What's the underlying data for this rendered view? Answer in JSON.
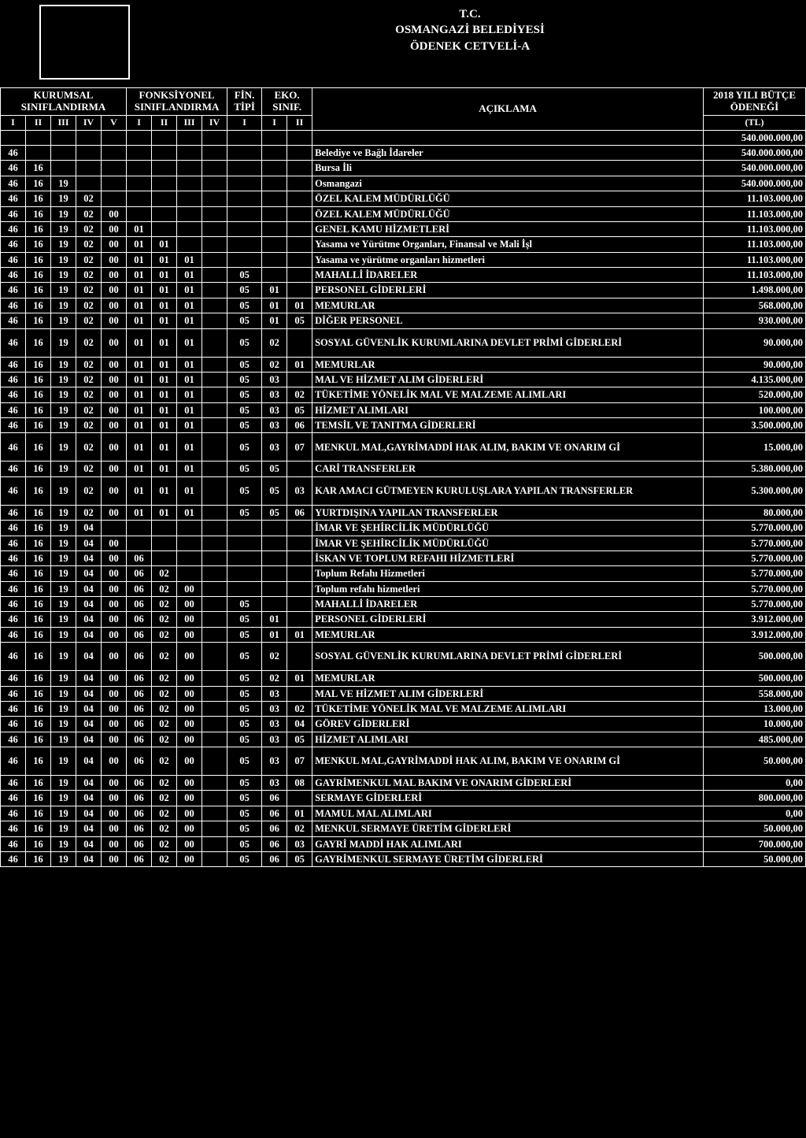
{
  "title": {
    "line1": "T.C.",
    "line2": "OSMANGAZİ BELEDİYESİ",
    "line3": "ÖDENEK CETVELİ-A"
  },
  "headers": {
    "kurumsal": "KURUMSAL SINIFLANDIRMA",
    "fonksiyonel": "FONKSİYONEL SINIFLANDIRMA",
    "fin": "FİN. TİPİ",
    "eko": "EKO. SINIF.",
    "aciklama": "AÇIKLAMA",
    "butce": "2018 YILI BÜTÇE ÖDENEĞİ",
    "tl": "(TL)",
    "roman": {
      "I": "I",
      "II": "II",
      "III": "III",
      "IV": "IV",
      "V": "V"
    }
  },
  "rows": [
    {
      "codes": [
        "",
        "",
        "",
        "",
        "",
        "",
        "",
        "",
        "",
        "",
        "",
        ""
      ],
      "desc": "",
      "amt": "540.000.000,00"
    },
    {
      "codes": [
        "46",
        "",
        "",
        "",
        "",
        "",
        "",
        "",
        "",
        "",
        "",
        ""
      ],
      "desc": "Belediye ve Bağlı İdareler",
      "amt": "540.000.000,00"
    },
    {
      "codes": [
        "46",
        "16",
        "",
        "",
        "",
        "",
        "",
        "",
        "",
        "",
        "",
        ""
      ],
      "desc": "Bursa İli",
      "amt": "540.000.000,00"
    },
    {
      "codes": [
        "46",
        "16",
        "19",
        "",
        "",
        "",
        "",
        "",
        "",
        "",
        "",
        ""
      ],
      "desc": "Osmangazi",
      "amt": "540.000.000,00"
    },
    {
      "codes": [
        "46",
        "16",
        "19",
        "02",
        "",
        "",
        "",
        "",
        "",
        "",
        "",
        ""
      ],
      "desc": "ÖZEL KALEM MÜDÜRLÜĞÜ",
      "amt": "11.103.000,00"
    },
    {
      "codes": [
        "46",
        "16",
        "19",
        "02",
        "00",
        "",
        "",
        "",
        "",
        "",
        "",
        ""
      ],
      "desc": "ÖZEL KALEM MÜDÜRLÜĞÜ",
      "amt": "11.103.000,00"
    },
    {
      "codes": [
        "46",
        "16",
        "19",
        "02",
        "00",
        "01",
        "",
        "",
        "",
        "",
        "",
        ""
      ],
      "desc": "GENEL KAMU HİZMETLERİ",
      "amt": "11.103.000,00"
    },
    {
      "codes": [
        "46",
        "16",
        "19",
        "02",
        "00",
        "01",
        "01",
        "",
        "",
        "",
        "",
        ""
      ],
      "desc": "Yasama ve Yürütme Organları,  Finansal ve Mali İşl",
      "amt": "11.103.000,00"
    },
    {
      "codes": [
        "46",
        "16",
        "19",
        "02",
        "00",
        "01",
        "01",
        "01",
        "",
        "",
        "",
        ""
      ],
      "desc": "Yasama ve yürütme organları hizmetleri",
      "amt": "11.103.000,00"
    },
    {
      "codes": [
        "46",
        "16",
        "19",
        "02",
        "00",
        "01",
        "01",
        "01",
        "",
        "05",
        "",
        ""
      ],
      "desc": "MAHALLİ İDARELER",
      "amt": "11.103.000,00"
    },
    {
      "codes": [
        "46",
        "16",
        "19",
        "02",
        "00",
        "01",
        "01",
        "01",
        "",
        "05",
        "01",
        ""
      ],
      "desc": "PERSONEL GİDERLERİ",
      "amt": "1.498.000,00"
    },
    {
      "codes": [
        "46",
        "16",
        "19",
        "02",
        "00",
        "01",
        "01",
        "01",
        "",
        "05",
        "01",
        "01"
      ],
      "desc": "MEMURLAR",
      "amt": "568.000,00"
    },
    {
      "codes": [
        "46",
        "16",
        "19",
        "02",
        "00",
        "01",
        "01",
        "01",
        "",
        "05",
        "01",
        "05"
      ],
      "desc": "DİĞER PERSONEL",
      "amt": "930.000,00"
    },
    {
      "codes": [
        "46",
        "16",
        "19",
        "02",
        "00",
        "01",
        "01",
        "01",
        "",
        "05",
        "02",
        ""
      ],
      "desc": "SOSYAL GÜVENLİK KURUMLARINA DEVLET PRİMİ GİDERLERİ",
      "amt": "90.000,00",
      "tall": true
    },
    {
      "codes": [
        "46",
        "16",
        "19",
        "02",
        "00",
        "01",
        "01",
        "01",
        "",
        "05",
        "02",
        "01"
      ],
      "desc": "MEMURLAR",
      "amt": "90.000,00"
    },
    {
      "codes": [
        "46",
        "16",
        "19",
        "02",
        "00",
        "01",
        "01",
        "01",
        "",
        "05",
        "03",
        ""
      ],
      "desc": "MAL VE HİZMET ALIM GİDERLERİ",
      "amt": "4.135.000,00"
    },
    {
      "codes": [
        "46",
        "16",
        "19",
        "02",
        "00",
        "01",
        "01",
        "01",
        "",
        "05",
        "03",
        "02"
      ],
      "desc": "TÜKETİME YÖNELİK MAL VE MALZEME ALIMLARI",
      "amt": "520.000,00"
    },
    {
      "codes": [
        "46",
        "16",
        "19",
        "02",
        "00",
        "01",
        "01",
        "01",
        "",
        "05",
        "03",
        "05"
      ],
      "desc": "HİZMET ALIMLARI",
      "amt": "100.000,00"
    },
    {
      "codes": [
        "46",
        "16",
        "19",
        "02",
        "00",
        "01",
        "01",
        "01",
        "",
        "05",
        "03",
        "06"
      ],
      "desc": "TEMSİL VE TANITMA GİDERLERİ",
      "amt": "3.500.000,00"
    },
    {
      "codes": [
        "46",
        "16",
        "19",
        "02",
        "00",
        "01",
        "01",
        "01",
        "",
        "05",
        "03",
        "07"
      ],
      "desc": "MENKUL MAL,GAYRİMADDİ HAK ALIM, BAKIM VE ONARIM Gİ",
      "amt": "15.000,00",
      "tall": true
    },
    {
      "codes": [
        "46",
        "16",
        "19",
        "02",
        "00",
        "01",
        "01",
        "01",
        "",
        "05",
        "05",
        ""
      ],
      "desc": "CARİ TRANSFERLER",
      "amt": "5.380.000,00"
    },
    {
      "codes": [
        "46",
        "16",
        "19",
        "02",
        "00",
        "01",
        "01",
        "01",
        "",
        "05",
        "05",
        "03"
      ],
      "desc": "KAR AMACI GÜTMEYEN KURULUŞLARA YAPILAN TRANSFERLER",
      "amt": "5.300.000,00",
      "tall": true
    },
    {
      "codes": [
        "46",
        "16",
        "19",
        "02",
        "00",
        "01",
        "01",
        "01",
        "",
        "05",
        "05",
        "06"
      ],
      "desc": "YURTDIŞINA YAPILAN TRANSFERLER",
      "amt": "80.000,00"
    },
    {
      "codes": [
        "46",
        "16",
        "19",
        "04",
        "",
        "",
        "",
        "",
        "",
        "",
        "",
        ""
      ],
      "desc": "İMAR VE ŞEHİRCİLİK MÜDÜRLÜĞÜ",
      "amt": "5.770.000,00"
    },
    {
      "codes": [
        "46",
        "16",
        "19",
        "04",
        "00",
        "",
        "",
        "",
        "",
        "",
        "",
        ""
      ],
      "desc": "İMAR VE ŞEHİRCİLİK MÜDÜRLÜĞÜ",
      "amt": "5.770.000,00"
    },
    {
      "codes": [
        "46",
        "16",
        "19",
        "04",
        "00",
        "06",
        "",
        "",
        "",
        "",
        "",
        ""
      ],
      "desc": "İSKAN VE TOPLUM REFAHI HİZMETLERİ",
      "amt": "5.770.000,00"
    },
    {
      "codes": [
        "46",
        "16",
        "19",
        "04",
        "00",
        "06",
        "02",
        "",
        "",
        "",
        "",
        ""
      ],
      "desc": "Toplum Refahı Hizmetleri",
      "amt": "5.770.000,00"
    },
    {
      "codes": [
        "46",
        "16",
        "19",
        "04",
        "00",
        "06",
        "02",
        "00",
        "",
        "",
        "",
        ""
      ],
      "desc": "Toplum refahı hizmetleri",
      "amt": "5.770.000,00"
    },
    {
      "codes": [
        "46",
        "16",
        "19",
        "04",
        "00",
        "06",
        "02",
        "00",
        "",
        "05",
        "",
        ""
      ],
      "desc": "MAHALLİ İDARELER",
      "amt": "5.770.000,00"
    },
    {
      "codes": [
        "46",
        "16",
        "19",
        "04",
        "00",
        "06",
        "02",
        "00",
        "",
        "05",
        "01",
        ""
      ],
      "desc": "PERSONEL GİDERLERİ",
      "amt": "3.912.000,00"
    },
    {
      "codes": [
        "46",
        "16",
        "19",
        "04",
        "00",
        "06",
        "02",
        "00",
        "",
        "05",
        "01",
        "01"
      ],
      "desc": "MEMURLAR",
      "amt": "3.912.000,00"
    },
    {
      "codes": [
        "46",
        "16",
        "19",
        "04",
        "00",
        "06",
        "02",
        "00",
        "",
        "05",
        "02",
        ""
      ],
      "desc": "SOSYAL GÜVENLİK KURUMLARINA DEVLET PRİMİ GİDERLERİ",
      "amt": "500.000,00",
      "tall": true
    },
    {
      "codes": [
        "46",
        "16",
        "19",
        "04",
        "00",
        "06",
        "02",
        "00",
        "",
        "05",
        "02",
        "01"
      ],
      "desc": "MEMURLAR",
      "amt": "500.000,00"
    },
    {
      "codes": [
        "46",
        "16",
        "19",
        "04",
        "00",
        "06",
        "02",
        "00",
        "",
        "05",
        "03",
        ""
      ],
      "desc": "MAL VE HİZMET ALIM GİDERLERİ",
      "amt": "558.000,00"
    },
    {
      "codes": [
        "46",
        "16",
        "19",
        "04",
        "00",
        "06",
        "02",
        "00",
        "",
        "05",
        "03",
        "02"
      ],
      "desc": "TÜKETİME YÖNELİK MAL VE MALZEME ALIMLARI",
      "amt": "13.000,00"
    },
    {
      "codes": [
        "46",
        "16",
        "19",
        "04",
        "00",
        "06",
        "02",
        "00",
        "",
        "05",
        "03",
        "04"
      ],
      "desc": "GÖREV GİDERLERİ",
      "amt": "10.000,00"
    },
    {
      "codes": [
        "46",
        "16",
        "19",
        "04",
        "00",
        "06",
        "02",
        "00",
        "",
        "05",
        "03",
        "05"
      ],
      "desc": "HİZMET ALIMLARI",
      "amt": "485.000,00"
    },
    {
      "codes": [
        "46",
        "16",
        "19",
        "04",
        "00",
        "06",
        "02",
        "00",
        "",
        "05",
        "03",
        "07"
      ],
      "desc": "MENKUL MAL,GAYRİMADDİ HAK ALIM, BAKIM VE ONARIM Gİ",
      "amt": "50.000,00",
      "tall": true
    },
    {
      "codes": [
        "46",
        "16",
        "19",
        "04",
        "00",
        "06",
        "02",
        "00",
        "",
        "05",
        "03",
        "08"
      ],
      "desc": "GAYRİMENKUL MAL BAKIM VE ONARIM GİDERLERİ",
      "amt": "0,00"
    },
    {
      "codes": [
        "46",
        "16",
        "19",
        "04",
        "00",
        "06",
        "02",
        "00",
        "",
        "05",
        "06",
        ""
      ],
      "desc": "SERMAYE GİDERLERİ",
      "amt": "800.000,00"
    },
    {
      "codes": [
        "46",
        "16",
        "19",
        "04",
        "00",
        "06",
        "02",
        "00",
        "",
        "05",
        "06",
        "01"
      ],
      "desc": "MAMUL MAL ALIMLARI",
      "amt": "0,00"
    },
    {
      "codes": [
        "46",
        "16",
        "19",
        "04",
        "00",
        "06",
        "02",
        "00",
        "",
        "05",
        "06",
        "02"
      ],
      "desc": "MENKUL SERMAYE ÜRETİM GİDERLERİ",
      "amt": "50.000,00"
    },
    {
      "codes": [
        "46",
        "16",
        "19",
        "04",
        "00",
        "06",
        "02",
        "00",
        "",
        "05",
        "06",
        "03"
      ],
      "desc": "GAYRİ MADDİ HAK ALIMLARI",
      "amt": "700.000,00"
    },
    {
      "codes": [
        "46",
        "16",
        "19",
        "04",
        "00",
        "06",
        "02",
        "00",
        "",
        "05",
        "06",
        "05"
      ],
      "desc": "GAYRİMENKUL SERMAYE ÜRETİM GİDERLERİ",
      "amt": "50.000,00"
    }
  ]
}
